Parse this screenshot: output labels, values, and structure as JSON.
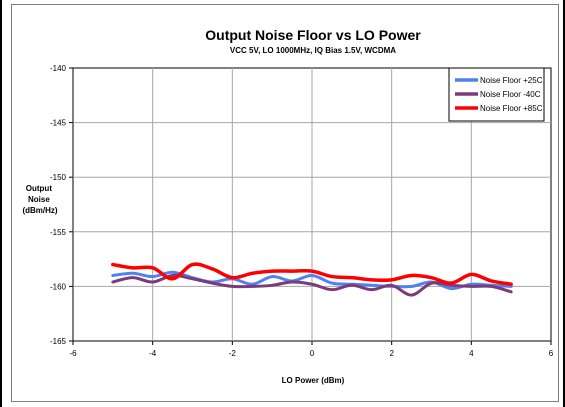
{
  "chart_data": {
    "type": "line",
    "title": "Output Noise Floor vs LO Power",
    "subtitle": "VCC 5V, LO 1000MHz, IQ Bias 1.5V, WCDMA",
    "xlabel": "LO Power (dBm)",
    "ylabel_lines": [
      "Output",
      "Noise",
      "(dBm/Hz)"
    ],
    "xlim": [
      -6,
      6
    ],
    "ylim": [
      -165,
      -140
    ],
    "xticks": [
      -6,
      -4,
      -2,
      0,
      2,
      4,
      6
    ],
    "yticks": [
      -165,
      -160,
      -155,
      -150,
      -145,
      -140
    ],
    "grid": true,
    "legend_position": "top-right",
    "series": [
      {
        "name": "Noise Floor +25C",
        "color": "#4f81f0",
        "x": [
          -5,
          -4.5,
          -4,
          -3.5,
          -3,
          -2.5,
          -2,
          -1.5,
          -1,
          -0.5,
          0,
          0.5,
          1,
          1.5,
          2,
          2.5,
          3,
          3.5,
          4,
          4.5,
          5
        ],
        "y": [
          -159.0,
          -158.8,
          -159.1,
          -158.7,
          -159.2,
          -159.6,
          -159.3,
          -159.8,
          -159.1,
          -159.5,
          -159.0,
          -159.7,
          -159.8,
          -159.9,
          -160.0,
          -160.0,
          -159.6,
          -160.2,
          -159.8,
          -159.9,
          -160.0
        ]
      },
      {
        "name": "Noise Floor -40C",
        "color": "#7b3b7b",
        "x": [
          -5,
          -4.5,
          -4,
          -3.5,
          -3,
          -2.5,
          -2,
          -1.5,
          -1,
          -0.5,
          0,
          0.5,
          1,
          1.5,
          2,
          2.5,
          3,
          3.5,
          4,
          4.5,
          5
        ],
        "y": [
          -159.6,
          -159.2,
          -159.6,
          -159.0,
          -159.3,
          -159.7,
          -160.0,
          -160.0,
          -159.9,
          -159.6,
          -159.8,
          -160.3,
          -159.9,
          -160.3,
          -159.9,
          -160.8,
          -159.7,
          -159.9,
          -160.0,
          -160.0,
          -160.5
        ]
      },
      {
        "name": "Noise Floor +85C",
        "color": "#ff0000",
        "x": [
          -5,
          -4.5,
          -4,
          -3.5,
          -3,
          -2.5,
          -2,
          -1.5,
          -1,
          -0.5,
          0,
          0.5,
          1,
          1.5,
          2,
          2.5,
          3,
          3.5,
          4,
          4.5,
          5
        ],
        "y": [
          -158.0,
          -158.3,
          -158.3,
          -159.3,
          -158.0,
          -158.4,
          -159.2,
          -158.8,
          -158.6,
          -158.6,
          -158.6,
          -159.1,
          -159.2,
          -159.4,
          -159.4,
          -159.0,
          -159.2,
          -159.7,
          -158.9,
          -159.5,
          -159.8
        ]
      }
    ]
  }
}
